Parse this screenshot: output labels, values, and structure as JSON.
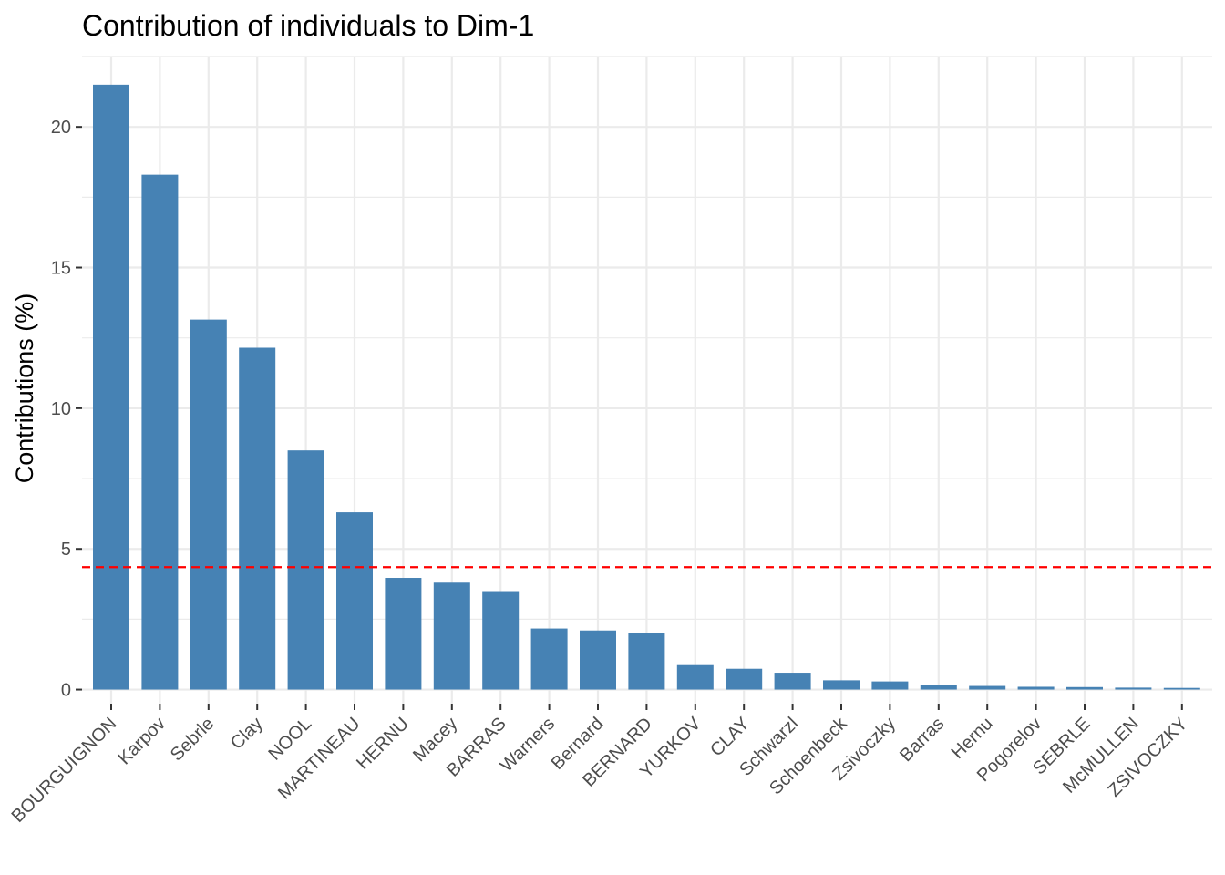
{
  "chart_data": {
    "type": "bar",
    "title": "Contribution of individuals to Dim-1",
    "xlabel": "",
    "ylabel": "Contributions (%)",
    "ylim": [
      -0.5,
      22.5
    ],
    "yticks": [
      0,
      5,
      10,
      15,
      20
    ],
    "categories": [
      "BOURGUIGNON",
      "Karpov",
      "Sebrle",
      "Clay",
      "NOOL",
      "MARTINEAU",
      "HERNU",
      "Macey",
      "BARRAS",
      "Warners",
      "Bernard",
      "BERNARD",
      "YURKOV",
      "CLAY",
      "Schwarzl",
      "Schoenbeck",
      "Zsivoczky",
      "Barras",
      "Hernu",
      "Pogorelov",
      "SEBRLE",
      "McMULLEN",
      "ZSIVOCZKY"
    ],
    "values": [
      21.5,
      18.3,
      13.15,
      12.15,
      8.5,
      6.3,
      3.97,
      3.8,
      3.5,
      2.17,
      2.1,
      2.0,
      0.87,
      0.74,
      0.6,
      0.33,
      0.29,
      0.16,
      0.13,
      0.1,
      0.09,
      0.07,
      0.06
    ],
    "reference_line": {
      "value": 4.35,
      "style": "dashed",
      "color": "#ff0000"
    },
    "bar_color": "#4682b4",
    "grid": true,
    "x_label_rotation": "45 degrees"
  }
}
